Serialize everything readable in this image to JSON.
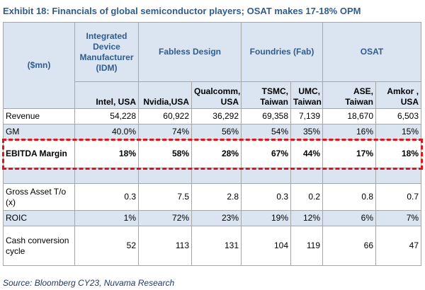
{
  "header": {
    "title": "Exhibit 18: Financials of global semiconductor players; OSAT makes 17-18% OPM"
  },
  "table": {
    "unit": "($mn)",
    "groups": [
      {
        "label": "Integrated Device Manufacturer (IDM)",
        "span": 1
      },
      {
        "label": "Fabless Design",
        "span": 2
      },
      {
        "label": "Foundries (Fab)",
        "span": 2
      },
      {
        "label": "OSAT",
        "span": 2
      }
    ],
    "columns": [
      "Intel, USA",
      "Nvidia,USA",
      "Qualcomm, USA",
      "TSMC, Taiwan",
      "UMC, Taiwan",
      "ASE, Taiwan",
      "Amkor , USA"
    ],
    "rows": [
      [
        "Revenue",
        "54,228",
        "60,922",
        "36,292",
        "69,358",
        "7,139",
        "18,670",
        "6,503"
      ],
      [
        "GM",
        "40.0%",
        "74%",
        "56%",
        "54%",
        "35%",
        "16%",
        "15%"
      ],
      [
        "EBITDA Margin",
        "18%",
        "58%",
        "28%",
        "67%",
        "44%",
        "17%",
        "18%"
      ],
      [
        "Gross Asset T/o (x)",
        "0.3",
        "7.5",
        "2.8",
        "0.3",
        "0.2",
        "0.8",
        "0.7"
      ],
      [
        "ROIC",
        "1%",
        "72%",
        "23%",
        "19%",
        "12%",
        "6%",
        "7%"
      ],
      [
        "Cash conversion cycle",
        "52",
        "113",
        "131",
        "104",
        "119",
        "66",
        "47"
      ]
    ]
  },
  "footer": {
    "source": "Source: Bloomberg CY23, Nuvama Research"
  }
}
